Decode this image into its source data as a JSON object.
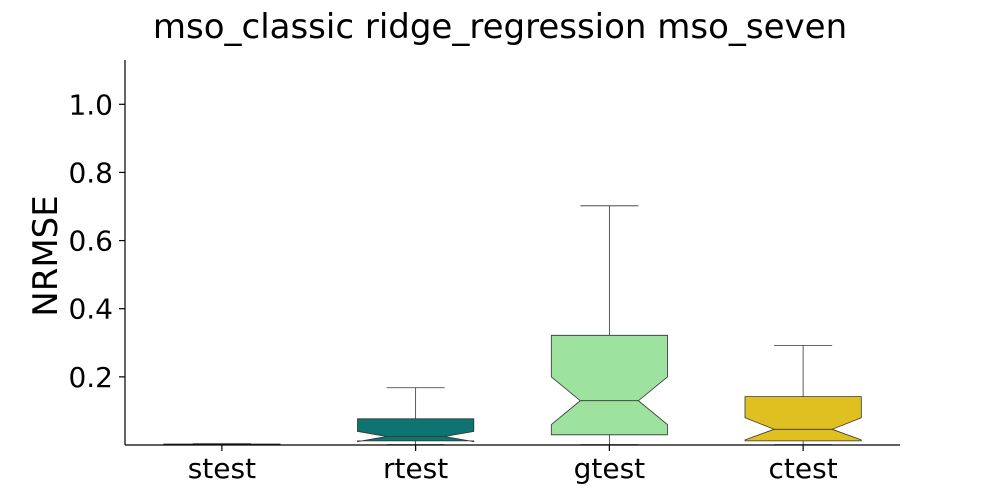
{
  "chart_data": {
    "type": "boxplot",
    "title": "mso_classic ridge_regression mso_seven",
    "xlabel": "",
    "ylabel": "NRMSE",
    "ylim": [
      0.0,
      1.13
    ],
    "yticks": [
      0.2,
      0.4,
      0.6,
      0.8,
      1.0
    ],
    "yticklabels": [
      "0.2",
      "0.4",
      "0.6",
      "0.8",
      "1.0"
    ],
    "categories": [
      "stest",
      "rtest",
      "gtest",
      "ctest"
    ],
    "notched": true,
    "grid": false,
    "boxes": [
      {
        "name": "stest",
        "color": "#1f5f5f",
        "whislo": 0.001,
        "q1": 0.001,
        "med": 0.002,
        "q3": 0.003,
        "whishi": 0.004,
        "notchlo": 0.0015,
        "notchhi": 0.0025
      },
      {
        "name": "rtest",
        "color": "#0e7470",
        "whislo": 0.001,
        "q1": 0.012,
        "med": 0.025,
        "q3": 0.077,
        "whishi": 0.168,
        "notchlo": 0.01,
        "notchhi": 0.04
      },
      {
        "name": "gtest",
        "color": "#9de29e",
        "whislo": 0.001,
        "q1": 0.03,
        "med": 0.13,
        "q3": 0.322,
        "whishi": 0.702,
        "notchlo": 0.06,
        "notchhi": 0.2
      },
      {
        "name": "ctest",
        "color": "#dfc020",
        "whislo": 0.001,
        "q1": 0.012,
        "med": 0.046,
        "q3": 0.142,
        "whishi": 0.292,
        "notchlo": 0.015,
        "notchhi": 0.08
      }
    ]
  }
}
